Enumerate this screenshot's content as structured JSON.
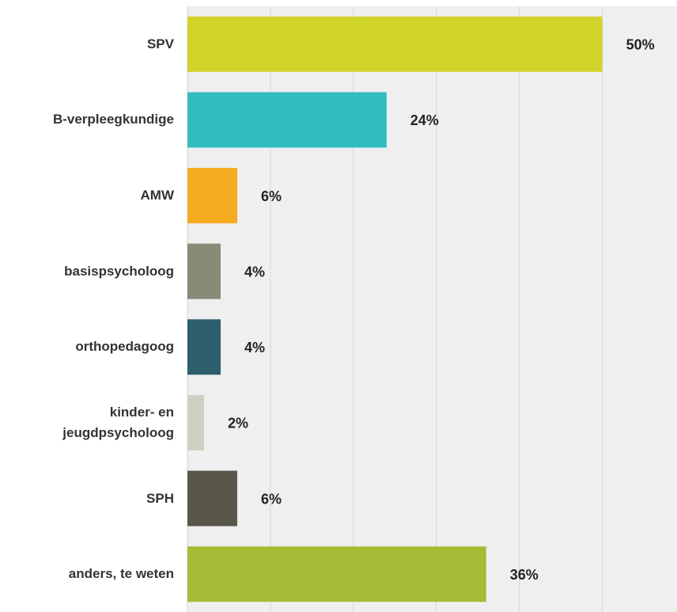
{
  "chart_data": {
    "type": "bar",
    "orientation": "horizontal",
    "categories": [
      "SPV",
      "B-verpleegkundige",
      "AMW",
      "basispsycholoog",
      "orthopedagoog",
      "kinder- en jeugdpsycholoog",
      "SPH",
      "anders, te weten"
    ],
    "values": [
      50,
      24,
      6,
      4,
      4,
      2,
      6,
      36
    ],
    "value_labels": [
      "50%",
      "24%",
      "6%",
      "4%",
      "4%",
      "2%",
      "6%",
      "36%"
    ],
    "colors": [
      "#d0d42a",
      "#31bdc0",
      "#f5ab20",
      "#8a8a78",
      "#2c5e6b",
      "#cfcfc4",
      "#58574a",
      "#a6bc37"
    ],
    "xlim": [
      0,
      59
    ],
    "xticks": [
      0,
      10,
      20,
      30,
      40,
      50
    ],
    "grid": true
  }
}
